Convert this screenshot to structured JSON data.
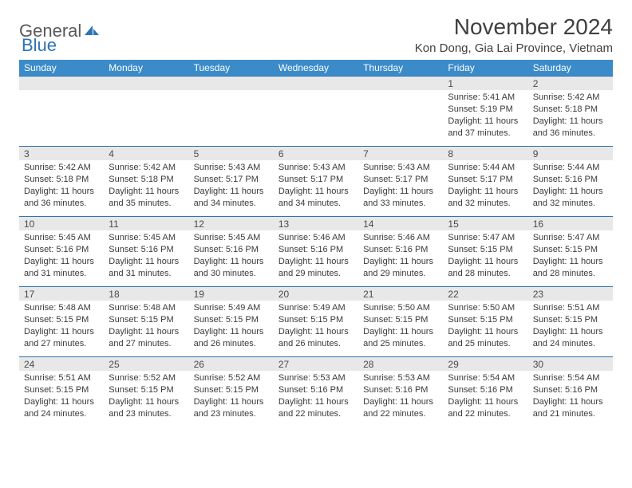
{
  "logo": {
    "text1": "General",
    "text2": "Blue"
  },
  "title": "November 2024",
  "location": "Kon Dong, Gia Lai Province, Vietnam",
  "colors": {
    "header_bg": "#3b8bc9",
    "header_text": "#ffffff",
    "border": "#2e74b5",
    "daynum_bg": "#e8e8e8",
    "text": "#3a3a3a",
    "logo_gray": "#595959",
    "logo_blue": "#2e74b5",
    "page_bg": "#ffffff"
  },
  "fonts": {
    "family": "Arial",
    "title_size": 28,
    "location_size": 15,
    "header_size": 12,
    "cell_size": 11
  },
  "day_headers": [
    "Sunday",
    "Monday",
    "Tuesday",
    "Wednesday",
    "Thursday",
    "Friday",
    "Saturday"
  ],
  "weeks": [
    [
      {
        "n": "",
        "sr": "",
        "ss": "",
        "dl": ""
      },
      {
        "n": "",
        "sr": "",
        "ss": "",
        "dl": ""
      },
      {
        "n": "",
        "sr": "",
        "ss": "",
        "dl": ""
      },
      {
        "n": "",
        "sr": "",
        "ss": "",
        "dl": ""
      },
      {
        "n": "",
        "sr": "",
        "ss": "",
        "dl": ""
      },
      {
        "n": "1",
        "sr": "Sunrise: 5:41 AM",
        "ss": "Sunset: 5:19 PM",
        "dl": "Daylight: 11 hours and 37 minutes."
      },
      {
        "n": "2",
        "sr": "Sunrise: 5:42 AM",
        "ss": "Sunset: 5:18 PM",
        "dl": "Daylight: 11 hours and 36 minutes."
      }
    ],
    [
      {
        "n": "3",
        "sr": "Sunrise: 5:42 AM",
        "ss": "Sunset: 5:18 PM",
        "dl": "Daylight: 11 hours and 36 minutes."
      },
      {
        "n": "4",
        "sr": "Sunrise: 5:42 AM",
        "ss": "Sunset: 5:18 PM",
        "dl": "Daylight: 11 hours and 35 minutes."
      },
      {
        "n": "5",
        "sr": "Sunrise: 5:43 AM",
        "ss": "Sunset: 5:17 PM",
        "dl": "Daylight: 11 hours and 34 minutes."
      },
      {
        "n": "6",
        "sr": "Sunrise: 5:43 AM",
        "ss": "Sunset: 5:17 PM",
        "dl": "Daylight: 11 hours and 34 minutes."
      },
      {
        "n": "7",
        "sr": "Sunrise: 5:43 AM",
        "ss": "Sunset: 5:17 PM",
        "dl": "Daylight: 11 hours and 33 minutes."
      },
      {
        "n": "8",
        "sr": "Sunrise: 5:44 AM",
        "ss": "Sunset: 5:17 PM",
        "dl": "Daylight: 11 hours and 32 minutes."
      },
      {
        "n": "9",
        "sr": "Sunrise: 5:44 AM",
        "ss": "Sunset: 5:16 PM",
        "dl": "Daylight: 11 hours and 32 minutes."
      }
    ],
    [
      {
        "n": "10",
        "sr": "Sunrise: 5:45 AM",
        "ss": "Sunset: 5:16 PM",
        "dl": "Daylight: 11 hours and 31 minutes."
      },
      {
        "n": "11",
        "sr": "Sunrise: 5:45 AM",
        "ss": "Sunset: 5:16 PM",
        "dl": "Daylight: 11 hours and 31 minutes."
      },
      {
        "n": "12",
        "sr": "Sunrise: 5:45 AM",
        "ss": "Sunset: 5:16 PM",
        "dl": "Daylight: 11 hours and 30 minutes."
      },
      {
        "n": "13",
        "sr": "Sunrise: 5:46 AM",
        "ss": "Sunset: 5:16 PM",
        "dl": "Daylight: 11 hours and 29 minutes."
      },
      {
        "n": "14",
        "sr": "Sunrise: 5:46 AM",
        "ss": "Sunset: 5:16 PM",
        "dl": "Daylight: 11 hours and 29 minutes."
      },
      {
        "n": "15",
        "sr": "Sunrise: 5:47 AM",
        "ss": "Sunset: 5:15 PM",
        "dl": "Daylight: 11 hours and 28 minutes."
      },
      {
        "n": "16",
        "sr": "Sunrise: 5:47 AM",
        "ss": "Sunset: 5:15 PM",
        "dl": "Daylight: 11 hours and 28 minutes."
      }
    ],
    [
      {
        "n": "17",
        "sr": "Sunrise: 5:48 AM",
        "ss": "Sunset: 5:15 PM",
        "dl": "Daylight: 11 hours and 27 minutes."
      },
      {
        "n": "18",
        "sr": "Sunrise: 5:48 AM",
        "ss": "Sunset: 5:15 PM",
        "dl": "Daylight: 11 hours and 27 minutes."
      },
      {
        "n": "19",
        "sr": "Sunrise: 5:49 AM",
        "ss": "Sunset: 5:15 PM",
        "dl": "Daylight: 11 hours and 26 minutes."
      },
      {
        "n": "20",
        "sr": "Sunrise: 5:49 AM",
        "ss": "Sunset: 5:15 PM",
        "dl": "Daylight: 11 hours and 26 minutes."
      },
      {
        "n": "21",
        "sr": "Sunrise: 5:50 AM",
        "ss": "Sunset: 5:15 PM",
        "dl": "Daylight: 11 hours and 25 minutes."
      },
      {
        "n": "22",
        "sr": "Sunrise: 5:50 AM",
        "ss": "Sunset: 5:15 PM",
        "dl": "Daylight: 11 hours and 25 minutes."
      },
      {
        "n": "23",
        "sr": "Sunrise: 5:51 AM",
        "ss": "Sunset: 5:15 PM",
        "dl": "Daylight: 11 hours and 24 minutes."
      }
    ],
    [
      {
        "n": "24",
        "sr": "Sunrise: 5:51 AM",
        "ss": "Sunset: 5:15 PM",
        "dl": "Daylight: 11 hours and 24 minutes."
      },
      {
        "n": "25",
        "sr": "Sunrise: 5:52 AM",
        "ss": "Sunset: 5:15 PM",
        "dl": "Daylight: 11 hours and 23 minutes."
      },
      {
        "n": "26",
        "sr": "Sunrise: 5:52 AM",
        "ss": "Sunset: 5:15 PM",
        "dl": "Daylight: 11 hours and 23 minutes."
      },
      {
        "n": "27",
        "sr": "Sunrise: 5:53 AM",
        "ss": "Sunset: 5:16 PM",
        "dl": "Daylight: 11 hours and 22 minutes."
      },
      {
        "n": "28",
        "sr": "Sunrise: 5:53 AM",
        "ss": "Sunset: 5:16 PM",
        "dl": "Daylight: 11 hours and 22 minutes."
      },
      {
        "n": "29",
        "sr": "Sunrise: 5:54 AM",
        "ss": "Sunset: 5:16 PM",
        "dl": "Daylight: 11 hours and 22 minutes."
      },
      {
        "n": "30",
        "sr": "Sunrise: 5:54 AM",
        "ss": "Sunset: 5:16 PM",
        "dl": "Daylight: 11 hours and 21 minutes."
      }
    ]
  ]
}
